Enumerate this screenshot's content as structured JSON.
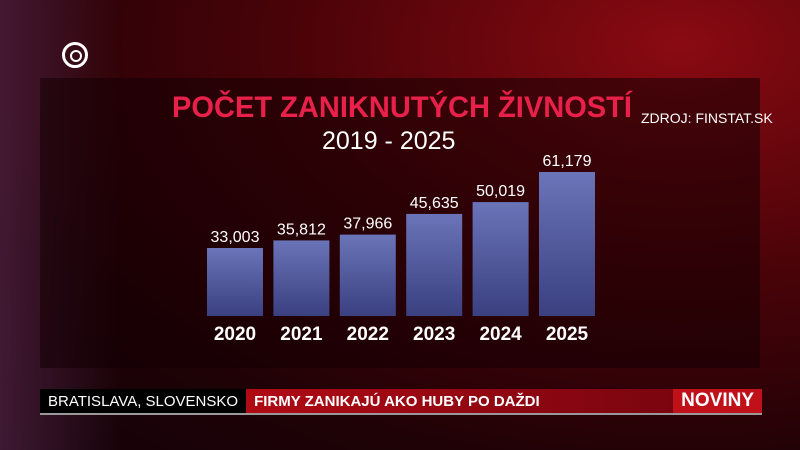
{
  "chart_data": {
    "type": "bar",
    "title": "POČET ZANIKNUTÝCH ŽIVNOSTÍ",
    "subtitle": "2019 - 2025",
    "source": "ZDROJ: FINSTAT.SK",
    "categories": [
      "2020",
      "2021",
      "2022",
      "2023",
      "2024",
      "2025"
    ],
    "values": [
      33003,
      35812,
      37966,
      45635,
      50019,
      61179
    ],
    "value_labels": [
      "33,003",
      "35,812",
      "37,966",
      "45,635",
      "50,019",
      "61,179"
    ],
    "bar_color": "#5a64a8",
    "grid": false
  },
  "ticker": {
    "location": "BRATISLAVA, SLOVENSKO",
    "headline": "FIRMY ZANIKAJÚ AKO HUBY PO DAŽDI",
    "brand": "NOVINY"
  },
  "colors": {
    "title": "#e8204a",
    "accent": "#c0101a"
  }
}
